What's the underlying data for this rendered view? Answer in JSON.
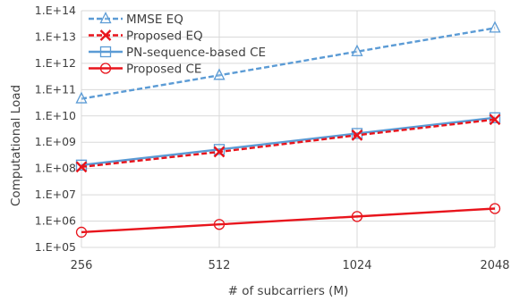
{
  "chart_data": {
    "type": "line",
    "title": "",
    "xlabel": "# of subcarriers (M)",
    "ylabel": "Computational Load",
    "x": [
      256,
      512,
      1024,
      2048
    ],
    "x_tick_labels": [
      "256",
      "512",
      "1024",
      "2048"
    ],
    "x_scale": "log2",
    "y_scale": "log10",
    "ylim": [
      100000,
      100000000000000
    ],
    "y_tick_labels": [
      "1.E+05",
      "1.E+06",
      "1.E+07",
      "1.E+08",
      "1.E+09",
      "1.E+10",
      "1.E+11",
      "1.E+12",
      "1.E+13",
      "1.E+14"
    ],
    "grid": true,
    "legend_position": "top-left",
    "series": [
      {
        "name": "MMSE EQ",
        "values": [
          45000000000,
          350000000000,
          2800000000000,
          22000000000000
        ],
        "color": "#5b9bd5",
        "dash": "6,3",
        "marker": "triangle"
      },
      {
        "name": "Proposed EQ",
        "values": [
          115000000,
          430000000,
          1850000000,
          7300000000
        ],
        "color": "#e8141c",
        "dash": "6,3",
        "marker": "x"
      },
      {
        "name": "PN-sequence-based CE",
        "values": [
          135000000,
          530000000,
          2150000000,
          8500000000
        ],
        "color": "#5b9bd5",
        "dash": "",
        "marker": "square"
      },
      {
        "name": "Proposed CE",
        "values": [
          380000,
          750000,
          1500000,
          3000000
        ],
        "color": "#e8141c",
        "dash": "",
        "marker": "circle"
      }
    ]
  }
}
